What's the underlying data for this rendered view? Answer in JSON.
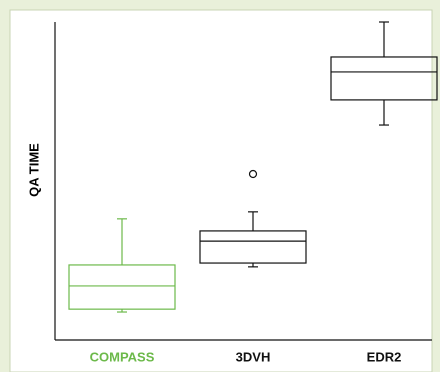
{
  "chart_data": {
    "type": "box",
    "ylabel": "QA TIME",
    "categories": [
      "COMPASS",
      "3DVH",
      "EDR2"
    ],
    "colors": [
      "#6cb94a",
      "#111111",
      "#111111"
    ],
    "boxes": [
      {
        "whislo": 8.8,
        "q1": 9.7,
        "med": 17.0,
        "q3": 23.6,
        "whishi": 38.1,
        "fliers": []
      },
      {
        "whislo": 23.0,
        "q1": 24.2,
        "med": 31.1,
        "q3": 34.3,
        "whishi": 40.3,
        "fliers": [
          52.2
        ]
      },
      {
        "whislo": 67.6,
        "q1": 75.5,
        "med": 84.3,
        "q3": 89.0,
        "whishi": 100,
        "fliers": []
      }
    ],
    "ylim": [
      0,
      100
    ]
  }
}
